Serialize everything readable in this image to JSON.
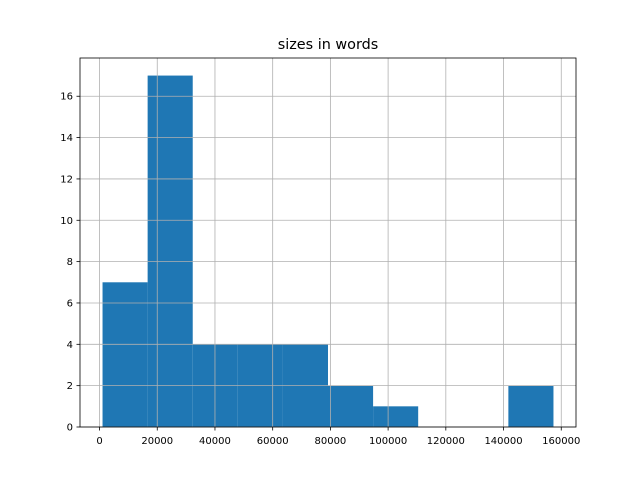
{
  "chart_data": {
    "type": "bar",
    "subtype": "histogram",
    "title": "sizes in words",
    "xlabel": "",
    "ylabel": "",
    "bin_edges": [
      1040,
      16666,
      32292,
      47918,
      63544,
      79170,
      94796,
      110422,
      126048,
      141674,
      157300
    ],
    "values": [
      7,
      17,
      4,
      4,
      4,
      2,
      1,
      0,
      0,
      2
    ],
    "xlim": [
      -6770,
      165110
    ],
    "ylim": [
      0,
      17.85
    ],
    "xticks": [
      0,
      20000,
      40000,
      60000,
      80000,
      100000,
      120000,
      140000,
      160000
    ],
    "xtick_labels": [
      "0",
      "20000",
      "40000",
      "60000",
      "80000",
      "100000",
      "120000",
      "140000",
      "160000"
    ],
    "yticks": [
      0,
      2,
      4,
      6,
      8,
      10,
      12,
      14,
      16
    ],
    "ytick_labels": [
      "0",
      "2",
      "4",
      "6",
      "8",
      "10",
      "12",
      "14",
      "16"
    ],
    "grid": true,
    "bar_color": "#1f77b4",
    "grid_color": "#b0b0b0"
  }
}
